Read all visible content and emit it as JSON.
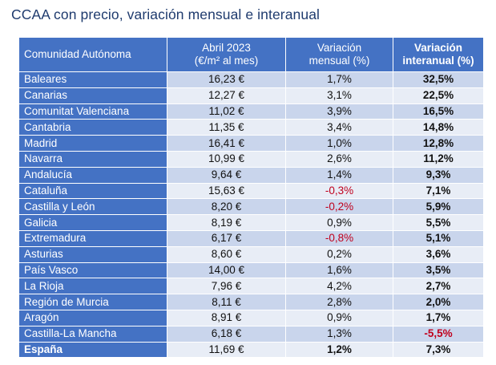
{
  "title": "CCAA con precio, variación mensual e interanual",
  "colors": {
    "header_bg": "#4472c4",
    "row_odd": "#c9d5ec",
    "row_even": "#e8edf6",
    "negative": "#c0001d",
    "title": "#1f3b6e"
  },
  "chart_data": {
    "type": "table",
    "columns": [
      {
        "line1": "Comunidad Autónoma",
        "line2": ""
      },
      {
        "line1": "Abril 2023",
        "line2": "(€/m² al mes)"
      },
      {
        "line1": "Variación",
        "line2": "mensual (%)"
      },
      {
        "line1": "Variación",
        "line2": "interanual (%)"
      }
    ],
    "rows": [
      {
        "region": "Baleares",
        "price": "16,23 €",
        "monthly": "1,7%",
        "yearly": "32,5%"
      },
      {
        "region": "Canarias",
        "price": "12,27 €",
        "monthly": "3,1%",
        "yearly": "22,5%"
      },
      {
        "region": "Comunitat Valenciana",
        "price": "11,02 €",
        "monthly": "3,9%",
        "yearly": "16,5%"
      },
      {
        "region": "Cantabria",
        "price": "11,35 €",
        "monthly": "3,4%",
        "yearly": "14,8%"
      },
      {
        "region": "Madrid",
        "price": "16,41 €",
        "monthly": "1,0%",
        "yearly": "12,8%"
      },
      {
        "region": "Navarra",
        "price": "10,99 €",
        "monthly": "2,6%",
        "yearly": "11,2%"
      },
      {
        "region": "Andalucía",
        "price": "9,64 €",
        "monthly": "1,4%",
        "yearly": "9,3%"
      },
      {
        "region": "Cataluña",
        "price": "15,63 €",
        "monthly": "-0,3%",
        "yearly": "7,1%"
      },
      {
        "region": "Castilla y León",
        "price": "8,20 €",
        "monthly": "-0,2%",
        "yearly": "5,9%"
      },
      {
        "region": "Galicia",
        "price": "8,19 €",
        "monthly": "0,9%",
        "yearly": "5,5%"
      },
      {
        "region": "Extremadura",
        "price": "6,17 €",
        "monthly": "-0,8%",
        "yearly": "5,1%"
      },
      {
        "region": "Asturias",
        "price": "8,60 €",
        "monthly": "0,2%",
        "yearly": "3,6%"
      },
      {
        "region": "País Vasco",
        "price": "14,00 €",
        "monthly": "1,6%",
        "yearly": "3,5%"
      },
      {
        "region": "La Rioja",
        "price": "7,96 €",
        "monthly": "4,2%",
        "yearly": "2,7%"
      },
      {
        "region": "Región de Murcia",
        "price": "8,11 €",
        "monthly": "2,8%",
        "yearly": "2,0%"
      },
      {
        "region": "Aragón",
        "price": "8,91 €",
        "monthly": "0,9%",
        "yearly": "1,7%"
      },
      {
        "region": "Castilla-La Mancha",
        "price": "6,18 €",
        "monthly": "1,3%",
        "yearly": "-5,5%"
      }
    ],
    "total": {
      "region": "España",
      "price": "11,69 €",
      "monthly": "1,2%",
      "yearly": "7,3%"
    }
  }
}
